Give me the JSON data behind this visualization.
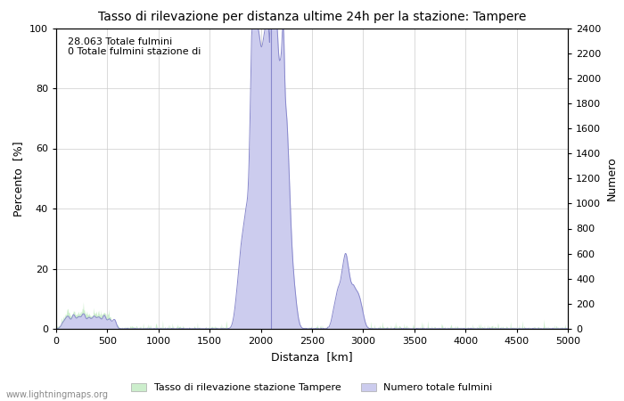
{
  "title": "Tasso di rilevazione per distanza ultime 24h per la stazione: Tampere",
  "xlabel": "Distanza  [km]",
  "ylabel_left": "Percento  [%]",
  "ylabel_right": "Numero",
  "annotation": "28.063 Totale fulmini\n0 Totale fulmini stazione di",
  "xlim": [
    0,
    5000
  ],
  "ylim_left": [
    0,
    100
  ],
  "ylim_right": [
    0,
    2400
  ],
  "xticks": [
    0,
    500,
    1000,
    1500,
    2000,
    2500,
    3000,
    3500,
    4000,
    4500,
    5000
  ],
  "yticks_left": [
    0,
    20,
    40,
    60,
    80,
    100
  ],
  "yticks_right": [
    0,
    200,
    400,
    600,
    800,
    1000,
    1200,
    1400,
    1600,
    1800,
    2000,
    2200,
    2400
  ],
  "legend_label_green": "Tasso di rilevazione stazione Tampere",
  "legend_label_blue": "Numero totale fulmini",
  "watermark": "www.lightningmaps.org",
  "green_color": "#cceecc",
  "blue_color": "#ccccee",
  "line_blue_color": "#8888cc",
  "bg_color": "#ffffff",
  "grid_color": "#cccccc",
  "vline_color": "#8888cc",
  "vline_x": 2100
}
